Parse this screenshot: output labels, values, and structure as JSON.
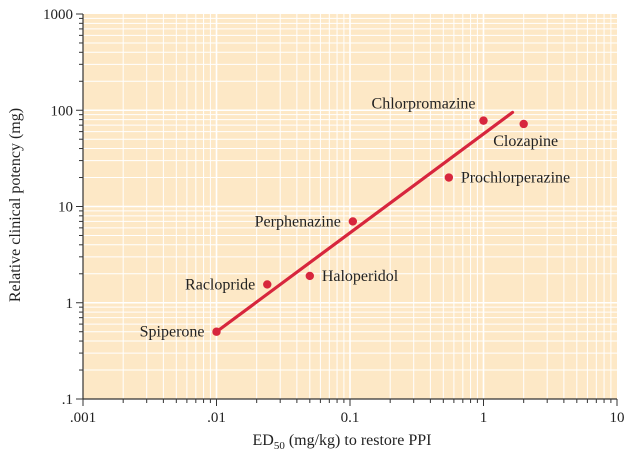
{
  "chart_data": {
    "type": "scatter",
    "xscale": "log",
    "yscale": "log",
    "xlim": [
      0.001,
      10
    ],
    "ylim": [
      0.1,
      1000
    ],
    "xlabel_main": "ED",
    "xlabel_sub": "50",
    "xlabel_rest": " (mg/kg) to restore PPI",
    "ylabel": "Relative clinical potency (mg)",
    "x_ticks": [
      {
        "value": 0.001,
        "label": ".001"
      },
      {
        "value": 0.01,
        "label": ".01"
      },
      {
        "value": 0.1,
        "label": "0.1"
      },
      {
        "value": 1,
        "label": "1"
      },
      {
        "value": 10,
        "label": "10"
      }
    ],
    "y_ticks": [
      {
        "value": 0.1,
        "label": ".1"
      },
      {
        "value": 1,
        "label": "1"
      },
      {
        "value": 10,
        "label": "10"
      },
      {
        "value": 100,
        "label": "100"
      },
      {
        "value": 1000,
        "label": "1000"
      }
    ],
    "grid": true,
    "points": [
      {
        "name": "Spiperone",
        "x": 0.01,
        "y": 0.5,
        "label_side": "left"
      },
      {
        "name": "Raclopride",
        "x": 0.024,
        "y": 1.55,
        "label_side": "left"
      },
      {
        "name": "Haloperidol",
        "x": 0.05,
        "y": 1.9,
        "label_side": "right"
      },
      {
        "name": "Perphenazine",
        "x": 0.105,
        "y": 7.0,
        "label_side": "left"
      },
      {
        "name": "Prochlorperazine",
        "x": 0.55,
        "y": 20,
        "label_side": "right"
      },
      {
        "name": "Chlorpromazine",
        "x": 1.0,
        "y": 78,
        "label_side": "above"
      },
      {
        "name": "Clozapine",
        "x": 2.0,
        "y": 72,
        "label_side": "below"
      }
    ],
    "fit_line": {
      "x": [
        0.01,
        1.65
      ],
      "y": [
        0.5,
        95
      ]
    },
    "colors": {
      "plot_background": "#fde8c6",
      "grid": "#ffffff",
      "points": "#d7263d",
      "line": "#d7263d",
      "axis": "#333333",
      "text": "#222222"
    }
  }
}
